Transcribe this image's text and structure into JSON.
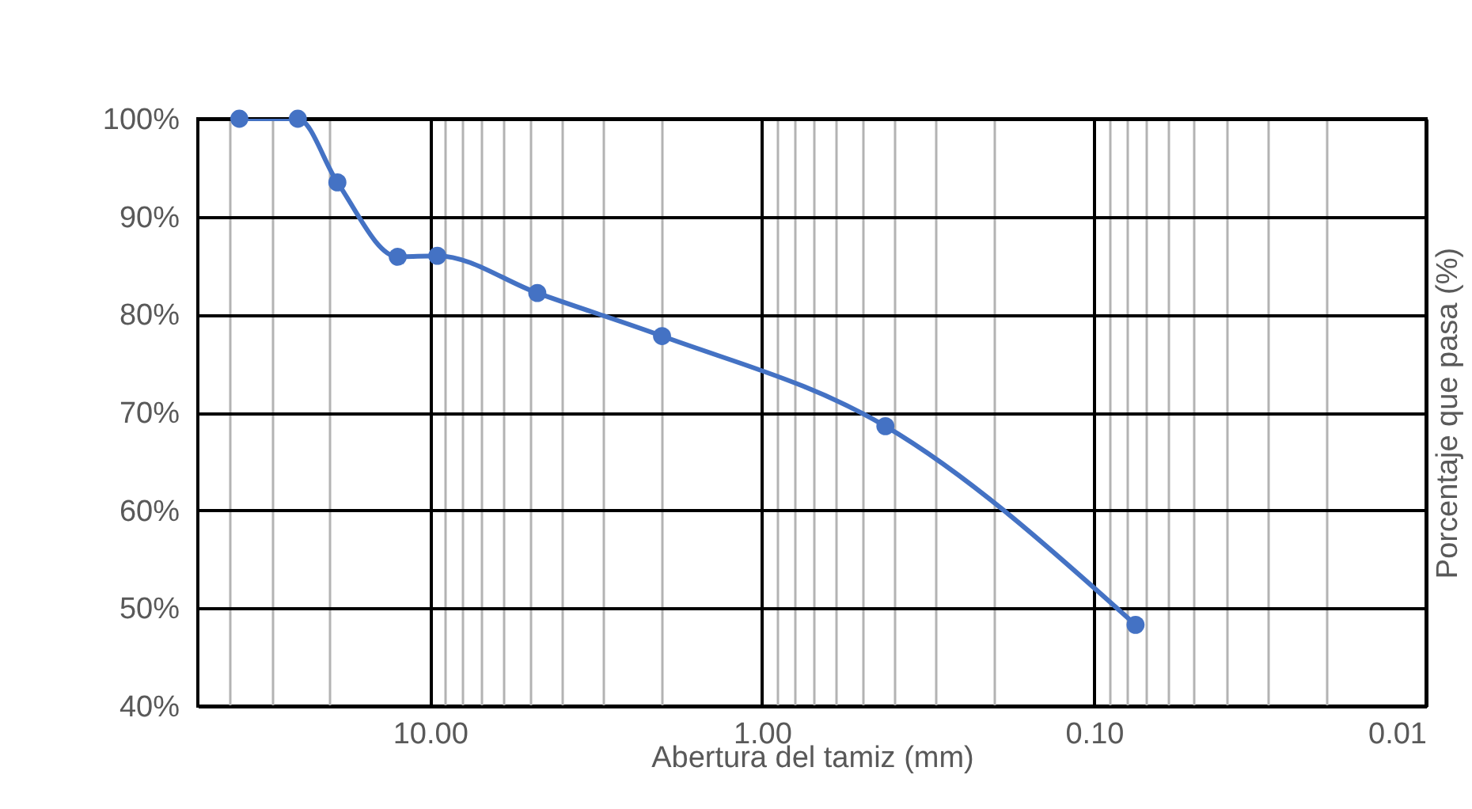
{
  "chart_data": {
    "type": "line",
    "xlabel": "Abertura del tamiz (mm)",
    "ylabel": "Porcentaje que pasa (%)",
    "x": [
      37.5,
      25,
      19,
      12.5,
      9.5,
      4.75,
      2,
      0.425,
      0.075
    ],
    "series": [
      {
        "color": "#4472c4",
        "values": [
          100,
          100,
          93.5,
          85.9,
          86,
          82.2,
          77.8,
          68.6,
          48.3
        ]
      }
    ],
    "log": "x",
    "xlim": [
      50,
      0.01
    ],
    "xticks": [
      {
        "value": 40,
        "label": null
      },
      {
        "value": 30,
        "label": null
      },
      {
        "value": 20,
        "label": null
      },
      {
        "value": 10,
        "label": "10.00"
      },
      {
        "value": 9,
        "label": null
      },
      {
        "value": 8,
        "label": null
      },
      {
        "value": 7,
        "label": null
      },
      {
        "value": 6,
        "label": null
      },
      {
        "value": 5,
        "label": null
      },
      {
        "value": 4,
        "label": null
      },
      {
        "value": 3,
        "label": null
      },
      {
        "value": 2,
        "label": null
      },
      {
        "value": 1,
        "label": "1.00"
      },
      {
        "value": 0.9,
        "label": null
      },
      {
        "value": 0.8,
        "label": null
      },
      {
        "value": 0.7,
        "label": null
      },
      {
        "value": 0.6,
        "label": null
      },
      {
        "value": 0.5,
        "label": null
      },
      {
        "value": 0.4,
        "label": null
      },
      {
        "value": 0.3,
        "label": null
      },
      {
        "value": 0.2,
        "label": null
      },
      {
        "value": 0.1,
        "label": "0.10"
      },
      {
        "value": 0.09,
        "label": null
      },
      {
        "value": 0.08,
        "label": null
      },
      {
        "value": 0.07,
        "label": null
      },
      {
        "value": 0.06,
        "label": null
      },
      {
        "value": 0.05,
        "label": null
      },
      {
        "value": 0.04,
        "label": null
      },
      {
        "value": 0.03,
        "label": null
      },
      {
        "value": 0.02,
        "label": null
      },
      {
        "value": 0.01,
        "label": "0.01"
      }
    ],
    "ylim": [
      40,
      100
    ],
    "yticks": [
      {
        "value": 40,
        "label": "40%"
      },
      {
        "value": 50,
        "label": "50%"
      },
      {
        "value": 60,
        "label": "60%"
      },
      {
        "value": 70,
        "label": "70%"
      },
      {
        "value": 80,
        "label": "80%"
      },
      {
        "value": 90,
        "label": "90%"
      },
      {
        "value": 100,
        "label": "100%"
      }
    ],
    "grid": true,
    "marker": "circle",
    "line_style": "solid"
  }
}
